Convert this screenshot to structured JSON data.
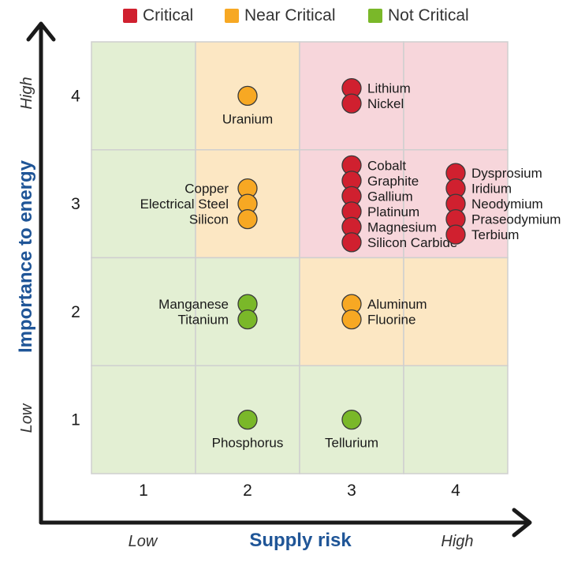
{
  "chart_data": {
    "type": "scatter",
    "title": "",
    "xlabel": "Supply risk",
    "ylabel": "Importance to energy",
    "x_low_label": "Low",
    "x_high_label": "High",
    "y_low_label": "Low",
    "y_high_label": "High",
    "xlim": [
      0.5,
      4.5
    ],
    "ylim": [
      0.5,
      4.5
    ],
    "x_ticks": [
      "1",
      "2",
      "3",
      "4"
    ],
    "y_ticks": [
      "1",
      "2",
      "3",
      "4"
    ],
    "legend": [
      {
        "name": "Critical",
        "color": "#d0202f"
      },
      {
        "name": "Near Critical",
        "color": "#f7a823"
      },
      {
        "name": "Not Critical",
        "color": "#7ab829"
      }
    ],
    "zone_colors": {
      "Critical": "#f7d6db",
      "Near Critical": "#fce7c3",
      "Not Critical": "#e3efd3"
    },
    "cells": [
      [
        "Not Critical",
        "Near Critical",
        "Critical",
        "Critical"
      ],
      [
        "Not Critical",
        "Near Critical",
        "Critical",
        "Critical"
      ],
      [
        "Not Critical",
        "Not Critical",
        "Near Critical",
        "Near Critical"
      ],
      [
        "Not Critical",
        "Not Critical",
        "Not Critical",
        "Not Critical"
      ]
    ],
    "groups": [
      {
        "category": "Critical",
        "x": 3,
        "y": 4,
        "label_side": "right",
        "materials": [
          "Lithium",
          "Nickel"
        ]
      },
      {
        "category": "Near Critical",
        "x": 2,
        "y": 4,
        "label_side": "below",
        "materials": [
          "Uranium"
        ]
      },
      {
        "category": "Critical",
        "x": 3,
        "y": 3,
        "label_side": "right",
        "materials": [
          "Cobalt",
          "Graphite",
          "Gallium",
          "Platinum",
          "Magnesium",
          "Silicon Carbide"
        ]
      },
      {
        "category": "Critical",
        "x": 4,
        "y": 3,
        "label_side": "right",
        "materials": [
          "Dysprosium",
          "Iridium",
          "Neodymium",
          "Praseodymium",
          "Terbium"
        ]
      },
      {
        "category": "Near Critical",
        "x": 2,
        "y": 3,
        "label_side": "left",
        "materials": [
          "Copper",
          "Electrical Steel",
          "Silicon"
        ]
      },
      {
        "category": "Not Critical",
        "x": 2,
        "y": 2,
        "label_side": "left",
        "materials": [
          "Manganese",
          "Titanium"
        ]
      },
      {
        "category": "Near Critical",
        "x": 3,
        "y": 2,
        "label_side": "right",
        "materials": [
          "Aluminum",
          "Fluorine"
        ]
      },
      {
        "category": "Not Critical",
        "x": 2,
        "y": 1,
        "label_side": "below",
        "materials": [
          "Phosphorus"
        ]
      },
      {
        "category": "Not Critical",
        "x": 3,
        "y": 1,
        "label_side": "below",
        "materials": [
          "Tellurium"
        ]
      }
    ]
  }
}
